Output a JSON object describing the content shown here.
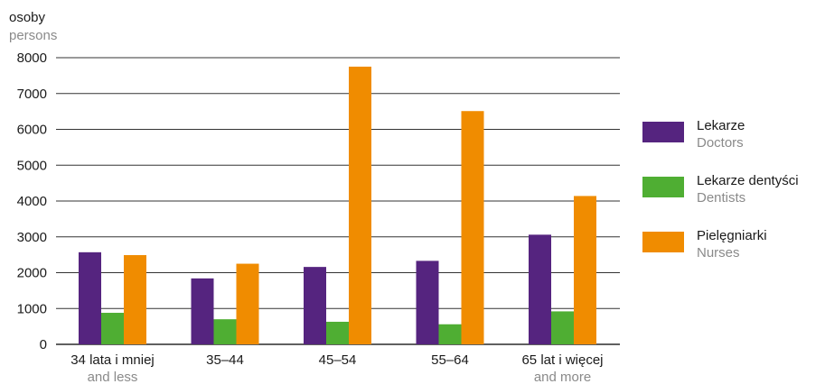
{
  "chart_data": {
    "type": "bar",
    "ylabel": {
      "primary": "osoby",
      "secondary": "persons"
    },
    "ylim": [
      0,
      8000
    ],
    "yticks": [
      0,
      1000,
      2000,
      3000,
      4000,
      5000,
      6000,
      7000,
      8000
    ],
    "grid": true,
    "legend_position": "right",
    "categories": [
      {
        "primary": "34 lata i mniej",
        "secondary": "and less"
      },
      {
        "primary": "35–44",
        "secondary": ""
      },
      {
        "primary": "45–54",
        "secondary": ""
      },
      {
        "primary": "55–64",
        "secondary": ""
      },
      {
        "primary": "65 lat i więcej",
        "secondary": "and more"
      }
    ],
    "series": [
      {
        "name": "Lekarze",
        "name_secondary": "Doctors",
        "color": "#55247f",
        "values": [
          2570,
          1840,
          2160,
          2330,
          3060
        ]
      },
      {
        "name": "Lekarze dentyści",
        "name_secondary": "Dentists",
        "color": "#4fae33",
        "values": [
          880,
          700,
          630,
          560,
          920
        ]
      },
      {
        "name": "Pielęgniarki",
        "name_secondary": "Nurses",
        "color": "#f08c00",
        "values": [
          2490,
          2250,
          7750,
          6510,
          4140
        ]
      }
    ]
  }
}
